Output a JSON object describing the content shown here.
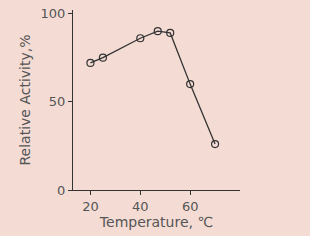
{
  "chart_data": {
    "type": "line",
    "x_label": "Temperature, ℃",
    "y_label": "Relative Activity,%",
    "x": [
      20,
      25,
      40,
      47,
      52,
      60,
      70
    ],
    "values": [
      72,
      75,
      86,
      90,
      89,
      60,
      26
    ],
    "color": "#333333",
    "marker": "circle-open",
    "line_style": "solid",
    "xlim": [
      13,
      80
    ],
    "xticks": [
      20,
      40,
      60
    ],
    "ylim": [
      0,
      102
    ],
    "yticks": [
      0,
      50,
      100
    ],
    "grid": false
  }
}
